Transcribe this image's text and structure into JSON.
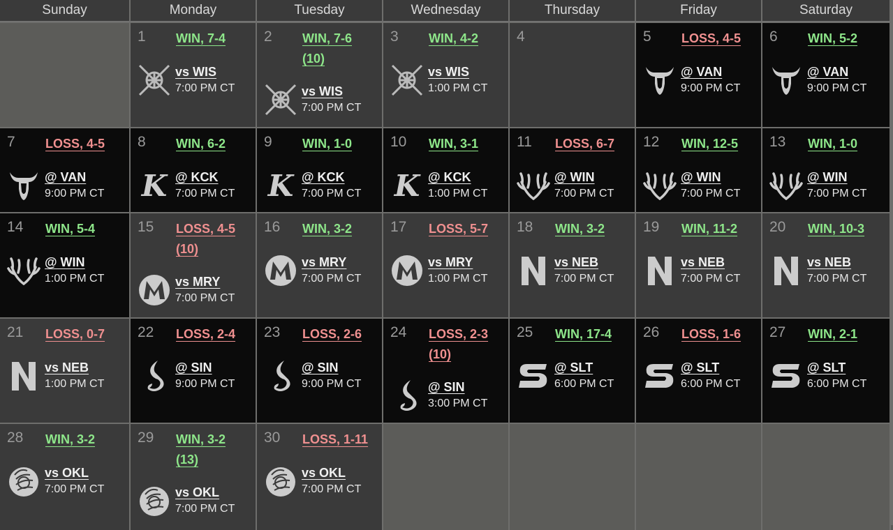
{
  "weekdays": [
    "Sunday",
    "Monday",
    "Tuesday",
    "Wednesday",
    "Thursday",
    "Friday",
    "Saturday"
  ],
  "weeks": [
    [
      {
        "empty": true
      },
      {
        "day": "1",
        "result": "WIN, 7-4",
        "outcome": "win",
        "matchup": "vs WIS",
        "time": "7:00 PM CT",
        "logo": "crossed-swords-icon",
        "venue": "home"
      },
      {
        "day": "2",
        "result": "WIN, 7-6",
        "ot": "(10)",
        "outcome": "win",
        "matchup": "vs WIS",
        "time": "7:00 PM CT",
        "logo": "crossed-swords-icon",
        "venue": "home"
      },
      {
        "day": "3",
        "result": "WIN, 4-2",
        "outcome": "win",
        "matchup": "vs WIS",
        "time": "1:00 PM CT",
        "logo": "crossed-swords-icon",
        "venue": "home"
      },
      {
        "day": "4",
        "venue": "home",
        "off": true
      },
      {
        "day": "5",
        "result": "LOSS, 4-5",
        "outcome": "loss",
        "matchup": "@ VAN",
        "time": "9:00 PM CT",
        "logo": "bull-horns-icon",
        "venue": "away"
      },
      {
        "day": "6",
        "result": "WIN, 5-2",
        "outcome": "win",
        "matchup": "@ VAN",
        "time": "9:00 PM CT",
        "logo": "bull-horns-icon",
        "venue": "away"
      }
    ],
    [
      {
        "day": "7",
        "result": "LOSS, 4-5",
        "outcome": "loss",
        "matchup": "@ VAN",
        "time": "9:00 PM CT",
        "logo": "bull-horns-icon",
        "venue": "away"
      },
      {
        "day": "8",
        "result": "WIN, 6-2",
        "outcome": "win",
        "matchup": "@ KCK",
        "time": "7:00 PM CT",
        "logo": "script-k-icon",
        "venue": "away"
      },
      {
        "day": "9",
        "result": "WIN, 1-0",
        "outcome": "win",
        "matchup": "@ KCK",
        "time": "7:00 PM CT",
        "logo": "script-k-icon",
        "venue": "away"
      },
      {
        "day": "10",
        "result": "WIN, 3-1",
        "outcome": "win",
        "matchup": "@ KCK",
        "time": "1:00 PM CT",
        "logo": "script-k-icon",
        "venue": "away"
      },
      {
        "day": "11",
        "result": "LOSS, 6-7",
        "outcome": "loss",
        "matchup": "@ WIN",
        "time": "7:00 PM CT",
        "logo": "antlers-icon",
        "venue": "away"
      },
      {
        "day": "12",
        "result": "WIN, 12-5",
        "outcome": "win",
        "matchup": "@ WIN",
        "time": "7:00 PM CT",
        "logo": "antlers-icon",
        "venue": "away"
      },
      {
        "day": "13",
        "result": "WIN, 1-0",
        "outcome": "win",
        "matchup": "@ WIN",
        "time": "7:00 PM CT",
        "logo": "antlers-icon",
        "venue": "away"
      }
    ],
    [
      {
        "day": "14",
        "result": "WIN, 5-4",
        "outcome": "win",
        "matchup": "@ WIN",
        "time": "1:00 PM CT",
        "logo": "antlers-icon",
        "venue": "away"
      },
      {
        "day": "15",
        "result": "LOSS, 4-5",
        "ot": "(10)",
        "outcome": "loss",
        "matchup": "vs MRY",
        "time": "7:00 PM CT",
        "logo": "m-circle-icon",
        "venue": "home"
      },
      {
        "day": "16",
        "result": "WIN, 3-2",
        "outcome": "win",
        "matchup": "vs MRY",
        "time": "7:00 PM CT",
        "logo": "m-circle-icon",
        "venue": "home"
      },
      {
        "day": "17",
        "result": "LOSS, 5-7",
        "outcome": "loss",
        "matchup": "vs MRY",
        "time": "1:00 PM CT",
        "logo": "m-circle-icon",
        "venue": "home"
      },
      {
        "day": "18",
        "result": "WIN, 3-2",
        "outcome": "win",
        "matchup": "vs NEB",
        "time": "7:00 PM CT",
        "logo": "letter-n-icon",
        "venue": "home"
      },
      {
        "day": "19",
        "result": "WIN, 11-2",
        "outcome": "win",
        "matchup": "vs NEB",
        "time": "7:00 PM CT",
        "logo": "letter-n-icon",
        "venue": "home"
      },
      {
        "day": "20",
        "result": "WIN, 10-3",
        "outcome": "win",
        "matchup": "vs NEB",
        "time": "7:00 PM CT",
        "logo": "letter-n-icon",
        "venue": "home"
      }
    ],
    [
      {
        "day": "21",
        "result": "LOSS, 0-7",
        "outcome": "loss",
        "matchup": "vs NEB",
        "time": "1:00 PM CT",
        "logo": "letter-n-icon",
        "venue": "home"
      },
      {
        "day": "22",
        "result": "LOSS, 2-4",
        "outcome": "loss",
        "matchup": "@ SIN",
        "time": "9:00 PM CT",
        "logo": "flame-s-icon",
        "venue": "away"
      },
      {
        "day": "23",
        "result": "LOSS, 2-6",
        "outcome": "loss",
        "matchup": "@ SIN",
        "time": "9:00 PM CT",
        "logo": "flame-s-icon",
        "venue": "away"
      },
      {
        "day": "24",
        "result": "LOSS, 2-3",
        "ot": "(10)",
        "outcome": "loss",
        "matchup": "@ SIN",
        "time": "3:00 PM CT",
        "logo": "flame-s-icon",
        "venue": "away"
      },
      {
        "day": "25",
        "result": "WIN, 17-4",
        "outcome": "win",
        "matchup": "@ SLT",
        "time": "6:00 PM CT",
        "logo": "block-s-icon",
        "venue": "away"
      },
      {
        "day": "26",
        "result": "LOSS, 1-6",
        "outcome": "loss",
        "matchup": "@ SLT",
        "time": "6:00 PM CT",
        "logo": "block-s-icon",
        "venue": "away"
      },
      {
        "day": "27",
        "result": "WIN, 2-1",
        "outcome": "win",
        "matchup": "@ SLT",
        "time": "6:00 PM CT",
        "logo": "block-s-icon",
        "venue": "away"
      }
    ],
    [
      {
        "day": "28",
        "result": "WIN, 3-2",
        "outcome": "win",
        "matchup": "vs OKL",
        "time": "7:00 PM CT",
        "logo": "baseball-glove-icon",
        "venue": "home"
      },
      {
        "day": "29",
        "result": "WIN, 3-2",
        "ot": "(13)",
        "outcome": "win",
        "matchup": "vs OKL",
        "time": "7:00 PM CT",
        "logo": "baseball-glove-icon",
        "venue": "home"
      },
      {
        "day": "30",
        "result": "LOSS, 1-11",
        "outcome": "loss",
        "matchup": "vs OKL",
        "time": "7:00 PM CT",
        "logo": "baseball-glove-icon",
        "venue": "home"
      },
      {
        "empty": true
      },
      {
        "empty": true
      },
      {
        "empty": true
      },
      {
        "empty": true
      }
    ]
  ],
  "colors": {
    "win": "#8ee68a",
    "loss": "#f09090",
    "home_bg": "#3a3a3a",
    "away_bg": "#0b0b0b",
    "empty_bg": "#5c5c59"
  }
}
